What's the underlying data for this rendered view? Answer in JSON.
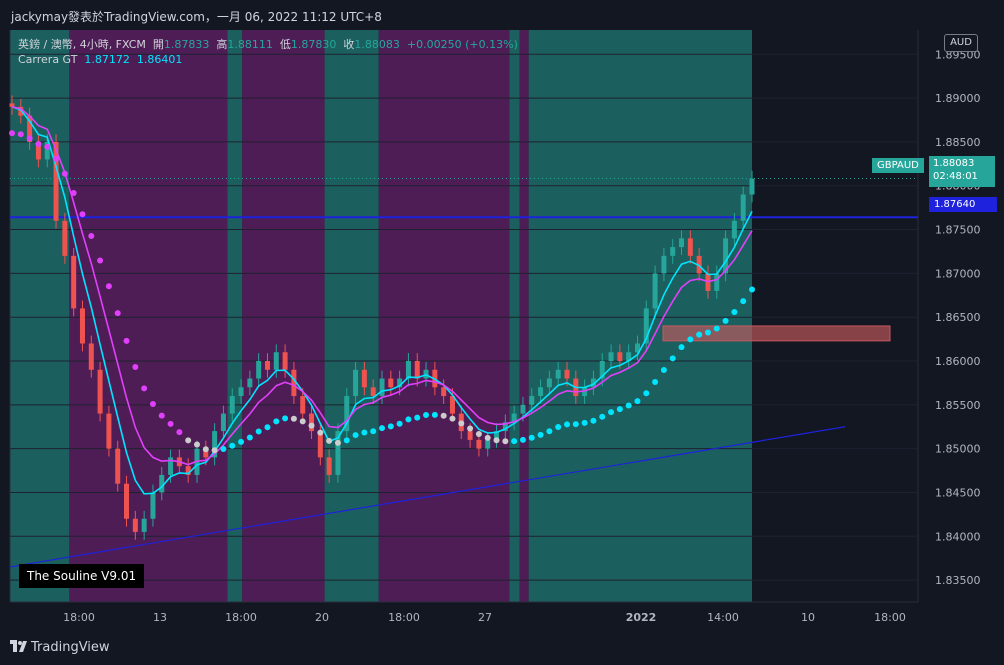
{
  "header": {
    "publisher": "jackymay發表於TradingView.com，一月 06, 2022 11:12 UTC+8"
  },
  "legend": {
    "symbol": "英鎊 / 澳幣, 4小時, FXCM",
    "open_label": "開",
    "open": "1.87833",
    "high_label": "高",
    "high": "1.88111",
    "low_label": "低",
    "low": "1.87830",
    "close_label": "收",
    "close": "1.88083",
    "change": "+0.00250 (+0.13%)",
    "indicator_name": "Carrera GT",
    "indicator_v1": "1.87172",
    "indicator_v2": "1.86401"
  },
  "indicator_box": "The Souline V9.01",
  "currency_button": "AUD",
  "last_price": {
    "symbol": "GBPAUD",
    "value": "1.88083",
    "countdown": "02:48:01"
  },
  "horizontal_line": {
    "value": "1.87640",
    "price": 1.8764
  },
  "footer": {
    "brand": "TradingView"
  },
  "colors": {
    "background": "#131722",
    "teal_zone": "#1b5f5e",
    "purple_zone": "#4f1d55",
    "bull": "#26a69a",
    "bear": "#ef5350",
    "cyan": "#00e5ff",
    "magenta": "#e040fb",
    "blue_line": "#1e22dd",
    "zone_box": "#c6595d"
  },
  "chart_data": {
    "type": "candlestick",
    "y_axis": {
      "ticks": [
        "1.83500",
        "1.84000",
        "1.84500",
        "1.85000",
        "1.85500",
        "1.86000",
        "1.86500",
        "1.87000",
        "1.87500",
        "1.88000",
        "1.88500",
        "1.89000",
        "1.89500"
      ],
      "range": [
        1.8325,
        1.898
      ]
    },
    "x_axis": {
      "ticks": [
        "18:00",
        "13",
        "18:00",
        "20",
        "18:00",
        "27",
        "2022",
        "14:00",
        "10",
        "18:00"
      ]
    },
    "bands": [
      {
        "color": "teal",
        "from": 0.0,
        "to": 0.08
      },
      {
        "color": "purple",
        "from": 0.08,
        "to": 0.293
      },
      {
        "color": "teal",
        "from": 0.293,
        "to": 0.313
      },
      {
        "color": "purple",
        "from": 0.313,
        "to": 0.424
      },
      {
        "color": "teal",
        "from": 0.424,
        "to": 0.497
      },
      {
        "color": "purple",
        "from": 0.497,
        "to": 0.673
      },
      {
        "color": "teal",
        "from": 0.673,
        "to": 0.687
      },
      {
        "color": "purple",
        "from": 0.687,
        "to": 0.699
      },
      {
        "color": "teal",
        "from": 0.699,
        "to": 1.0
      }
    ],
    "closes": [
      1.889,
      1.888,
      1.885,
      1.883,
      1.885,
      1.876,
      1.872,
      1.866,
      1.862,
      1.859,
      1.854,
      1.85,
      1.846,
      1.842,
      1.8405,
      1.842,
      1.845,
      1.847,
      1.849,
      1.848,
      1.847,
      1.85,
      1.849,
      1.852,
      1.854,
      1.856,
      1.857,
      1.858,
      1.86,
      1.859,
      1.861,
      1.859,
      1.856,
      1.854,
      1.852,
      1.849,
      1.847,
      1.852,
      1.856,
      1.859,
      1.857,
      1.856,
      1.858,
      1.857,
      1.858,
      1.86,
      1.858,
      1.859,
      1.857,
      1.856,
      1.854,
      1.852,
      1.851,
      1.85,
      1.851,
      1.852,
      1.853,
      1.854,
      1.855,
      1.856,
      1.857,
      1.858,
      1.859,
      1.858,
      1.856,
      1.857,
      1.858,
      1.86,
      1.861,
      1.86,
      1.861,
      1.862,
      1.866,
      1.87,
      1.872,
      1.873,
      1.874,
      1.872,
      1.87,
      1.868,
      1.87,
      1.874,
      1.876,
      1.879,
      1.8808
    ],
    "horizontal_levels": [
      1.8764
    ],
    "zone": {
      "low": 1.8623,
      "high": 1.864
    },
    "trendline": {
      "from": 1.8365,
      "to": 1.8525
    }
  }
}
